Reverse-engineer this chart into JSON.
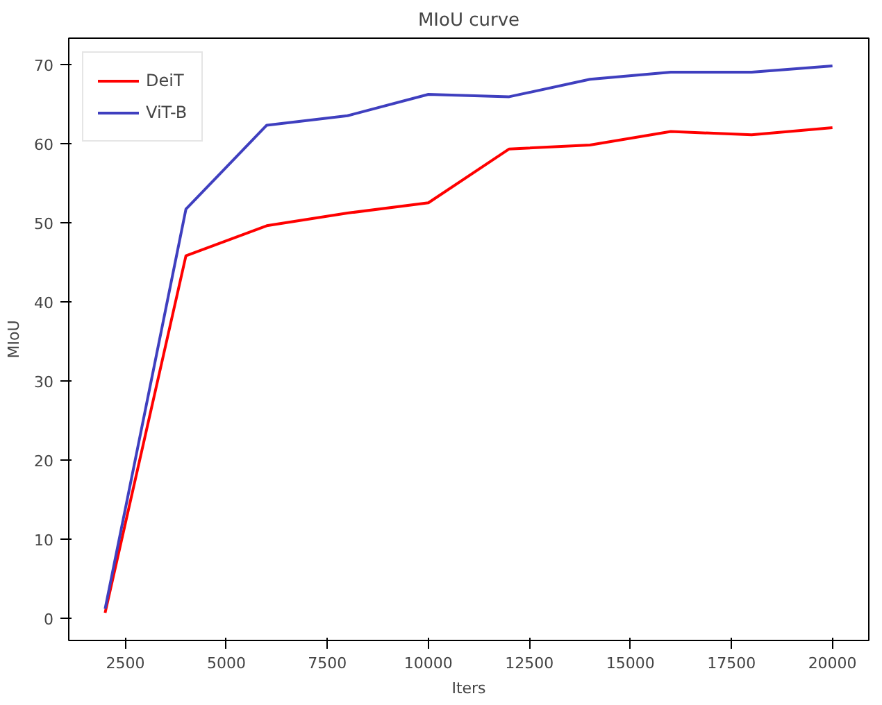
{
  "chart_data": {
    "type": "line",
    "title": "MIoU curve",
    "xlabel": "Iters",
    "ylabel": "MIoU",
    "x": [
      2000,
      4000,
      6000,
      8000,
      10000,
      12000,
      14000,
      16000,
      18000,
      20000
    ],
    "series": [
      {
        "name": "DeiT",
        "color": "#ff0000",
        "values": [
          0.7,
          45.8,
          49.6,
          51.2,
          52.5,
          59.3,
          59.8,
          61.5,
          61.1,
          62.0
        ]
      },
      {
        "name": "ViT-B",
        "color": "#3f3fbf",
        "values": [
          1.2,
          51.7,
          62.3,
          63.5,
          66.2,
          65.9,
          68.1,
          69.0,
          69.0,
          69.8
        ]
      }
    ],
    "xlim": [
      1100,
      20900
    ],
    "ylim": [
      -2.8,
      73.3
    ],
    "xticks": [
      2500,
      5000,
      7500,
      10000,
      12500,
      15000,
      17500,
      20000
    ],
    "yticks": [
      0,
      10,
      20,
      30,
      40,
      50,
      60,
      70
    ],
    "grid": false,
    "legend": "top left",
    "line_style": "solid",
    "marker": "none"
  }
}
